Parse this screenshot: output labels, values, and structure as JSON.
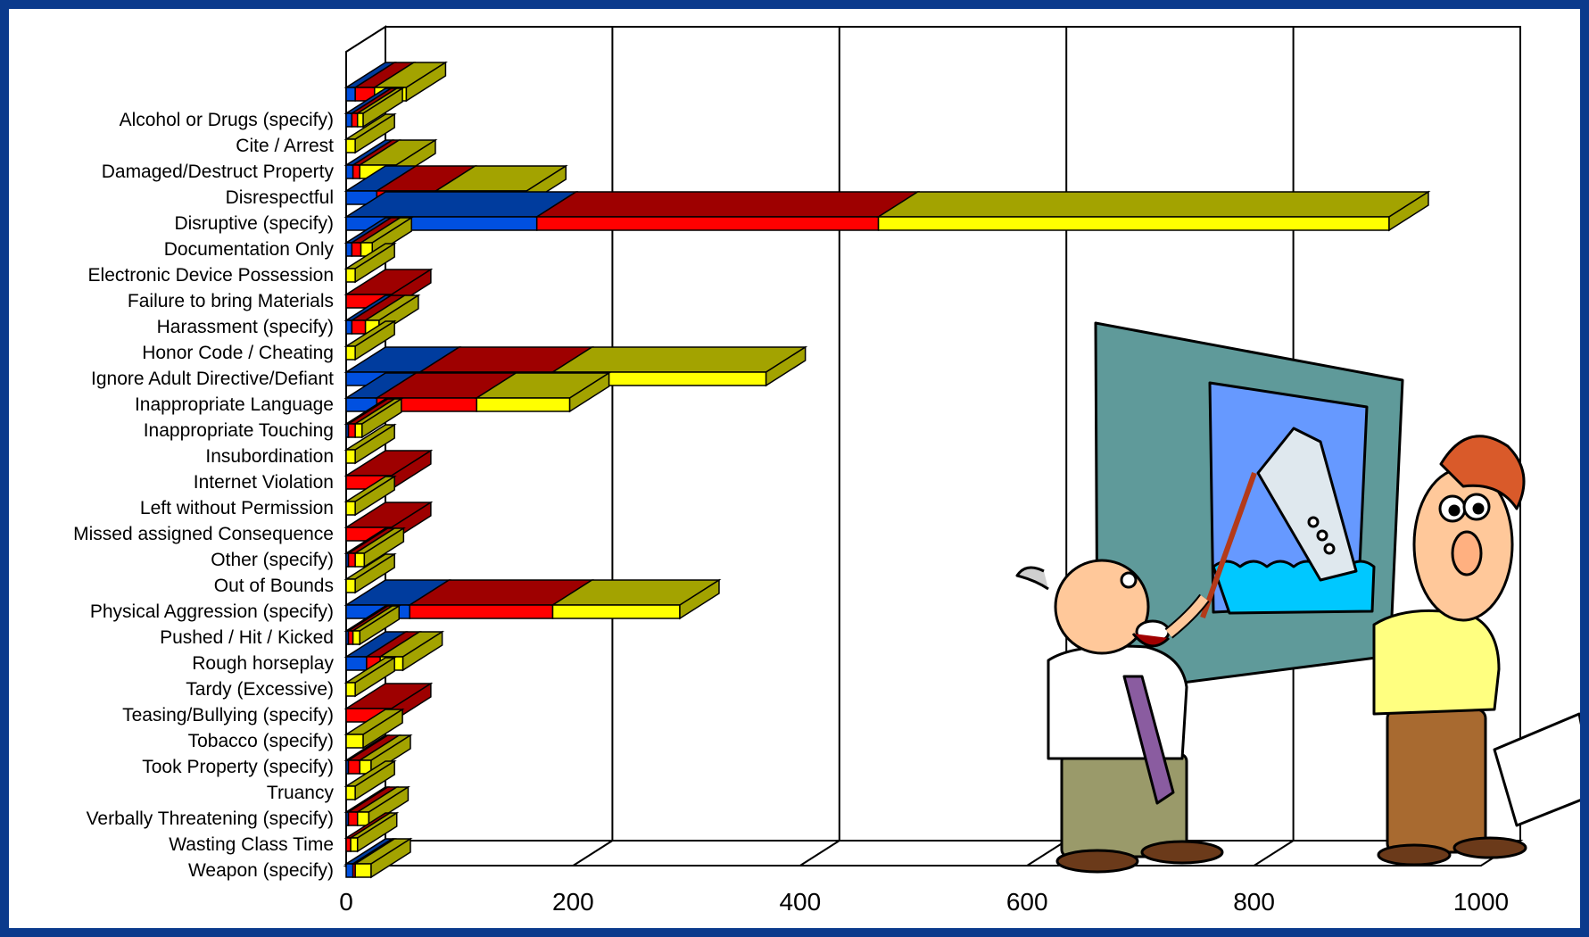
{
  "chart_data": {
    "type": "bar",
    "orientation": "horizontal",
    "stacked": true,
    "three_d": true,
    "grid": true,
    "xlim": [
      0,
      1000
    ],
    "x_ticks": [
      "0",
      "200",
      "400",
      "600",
      "800",
      "1000"
    ],
    "categories": [
      "",
      "Alcohol or Drugs (specify)",
      "Cite / Arrest",
      "Damaged/Destruct Property",
      "Disrespectful",
      "Disruptive (specify)",
      "Documentation Only",
      "Electronic Device Possession",
      "Failure to bring Materials",
      "Harassment (specify)",
      "Honor Code / Cheating",
      "Ignore Adult Directive/Defiant",
      "Inappropriate Language",
      "Inappropriate Touching",
      "Insubordination",
      "Internet Violation",
      "Left without Permission",
      "Missed assigned Consequence",
      "Other (specify)",
      "Out of Bounds",
      "Physical Aggression (specify)",
      "Pushed / Hit / Kicked",
      "Rough horseplay",
      "Tardy (Excessive)",
      "Teasing/Bullying (specify)",
      "Tobacco (specify)",
      "Took Property (specify)",
      "Truancy",
      "Verbally Threatening (specify)",
      "Wasting Class Time",
      "Weapon (specify)"
    ],
    "series": [
      {
        "color": "#0050e0",
        "values": [
          8,
          5,
          0,
          6,
          27,
          168,
          5,
          0,
          0,
          5,
          0,
          65,
          27,
          2,
          0,
          0,
          0,
          0,
          2,
          0,
          56,
          2,
          18,
          0,
          0,
          0,
          2,
          0,
          2,
          0,
          6
        ]
      },
      {
        "color": "#ff0000",
        "values": [
          17,
          5,
          0,
          6,
          52,
          301,
          8,
          0,
          40,
          12,
          0,
          117,
          88,
          6,
          0,
          40,
          0,
          40,
          6,
          0,
          126,
          4,
          12,
          0,
          40,
          0,
          10,
          0,
          8,
          4,
          2
        ]
      },
      {
        "color": "#ffff00",
        "values": [
          28,
          5,
          8,
          32,
          80,
          450,
          10,
          8,
          0,
          12,
          8,
          188,
          82,
          6,
          8,
          0,
          8,
          0,
          8,
          8,
          112,
          6,
          20,
          8,
          0,
          15,
          10,
          8,
          10,
          6,
          14
        ]
      }
    ],
    "colors": {
      "front": [
        "#0050e0",
        "#ff0000",
        "#ffff00"
      ],
      "top": [
        "#003c9e",
        "#9e0000",
        "#a3a300"
      ],
      "border": "#000000",
      "frame": "#0b3a8c"
    }
  },
  "illustration": {
    "description_icon": "two-cartoon-men-presenting-sinking-ship-picture"
  }
}
